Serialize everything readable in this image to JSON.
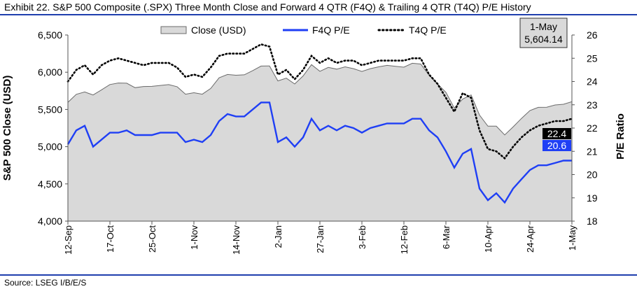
{
  "title": "Exhibit 22. S&P 500 Composite (.SPX) Three Month Close and Forward 4 QTR (F4Q) & Trailing 4 QTR (T4Q) P/E History",
  "source": "Source: LSEG I/B/E/S",
  "callout": {
    "date": "1-May",
    "value": "5,604.14"
  },
  "end_labels": {
    "t4q": "22.4",
    "f4q": "20.6"
  },
  "colors": {
    "area": "#d9d9d9",
    "f4q": "#1f3ff5",
    "t4q": "#000000",
    "accent": "#1f3fae"
  },
  "chart_data": {
    "type": "line",
    "title": "Exhibit 22. S&P 500 Composite (.SPX) Three Month Close and Forward 4 QTR (F4Q) & Trailing 4 QTR (T4Q) P/E History",
    "ylabel": "S&P 500 Close (USD)",
    "y2label": "P/E Ratio",
    "ylim": [
      4000,
      6500
    ],
    "y2lim": [
      18,
      26
    ],
    "yticks": [
      "4,000",
      "4,500",
      "5,000",
      "5,500",
      "6,000",
      "6,500"
    ],
    "y2ticks": [
      "18",
      "19",
      "20",
      "21",
      "22",
      "23",
      "24",
      "25",
      "26"
    ],
    "xticks": [
      "12-Sep",
      "17-Oct",
      "25-Oct",
      "1-Nov",
      "14-Nov",
      "2-Jan",
      "27-Jan",
      "3-Feb",
      "12-Feb",
      "6-Mar",
      "10-Apr",
      "24-Apr",
      "1-May"
    ],
    "legend": [
      "Close (USD)",
      "F4Q P/E",
      "T4Q P/E"
    ],
    "series": [
      {
        "name": "Close (USD)",
        "axis": "left",
        "values": [
          5596,
          5703,
          5735,
          5695,
          5763,
          5835,
          5855,
          5852,
          5792,
          5808,
          5810,
          5822,
          5834,
          5805,
          5705,
          5725,
          5705,
          5782,
          5925,
          5970,
          5960,
          5965,
          6022,
          6083,
          6085,
          5883,
          5920,
          5842,
          5950,
          6102,
          6012,
          6065,
          6041,
          6072,
          6048,
          6010,
          6048,
          6072,
          6092,
          6080,
          6068,
          6120,
          6110,
          5960,
          5842,
          5730,
          5520,
          5640,
          5695,
          5425,
          5275,
          5275,
          5158,
          5265,
          5380,
          5485,
          5528,
          5530,
          5560,
          5570,
          5604
        ]
      },
      {
        "name": "F4Q P/E",
        "axis": "right",
        "values": [
          21.3,
          21.9,
          22.1,
          21.2,
          21.5,
          21.8,
          21.8,
          21.9,
          21.7,
          21.7,
          21.7,
          21.8,
          21.8,
          21.8,
          21.4,
          21.5,
          21.4,
          21.7,
          22.3,
          22.6,
          22.5,
          22.5,
          22.8,
          23.1,
          23.1,
          21.4,
          21.6,
          21.2,
          21.6,
          22.4,
          21.9,
          22.1,
          21.9,
          22.1,
          22.0,
          21.8,
          22.0,
          22.1,
          22.2,
          22.2,
          22.2,
          22.4,
          22.4,
          21.9,
          21.6,
          21.0,
          20.3,
          20.9,
          21.1,
          19.4,
          18.9,
          19.2,
          18.8,
          19.4,
          19.8,
          20.2,
          20.4,
          20.4,
          20.5,
          20.6,
          20.6
        ]
      },
      {
        "name": "T4Q P/E",
        "axis": "right",
        "values": [
          24.0,
          24.5,
          24.7,
          24.3,
          24.7,
          24.9,
          25.0,
          24.9,
          24.8,
          24.7,
          24.8,
          24.8,
          24.8,
          24.6,
          24.2,
          24.3,
          24.2,
          24.6,
          25.1,
          25.2,
          25.2,
          25.2,
          25.4,
          25.6,
          25.5,
          24.3,
          24.5,
          24.1,
          24.5,
          25.1,
          24.8,
          25.0,
          24.8,
          24.9,
          24.9,
          24.7,
          24.8,
          24.9,
          24.9,
          24.9,
          24.9,
          25.0,
          25.0,
          24.3,
          23.9,
          23.3,
          22.7,
          23.5,
          23.3,
          21.9,
          21.1,
          21.0,
          20.7,
          21.2,
          21.6,
          21.9,
          22.1,
          22.2,
          22.3,
          22.3,
          22.4
        ]
      }
    ]
  }
}
